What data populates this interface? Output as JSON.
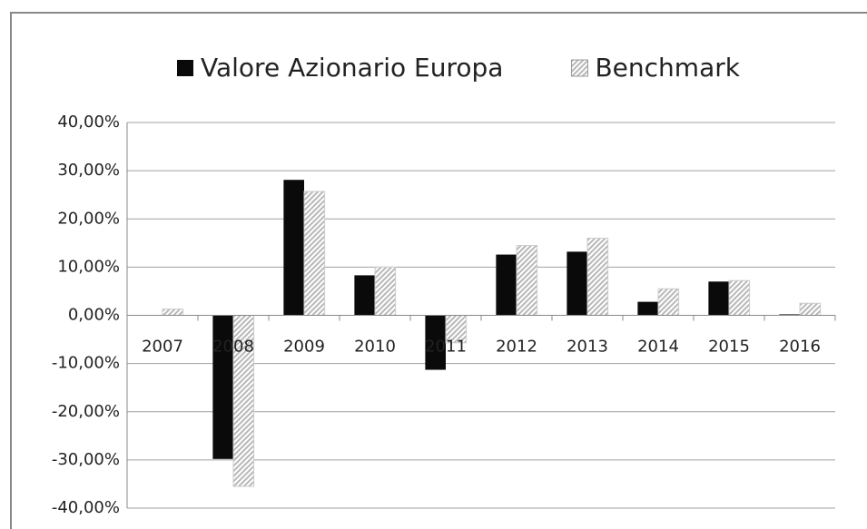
{
  "chart_data": {
    "type": "bar",
    "categories": [
      "2007",
      "2008",
      "2009",
      "2010",
      "2011",
      "2012",
      "2013",
      "2014",
      "2015",
      "2016"
    ],
    "series": [
      {
        "name": "Valore Azionario Europa",
        "color": "#0a0a0a",
        "values": [
          0,
          -29.8,
          28.1,
          8.3,
          -11.3,
          12.6,
          13.2,
          2.8,
          7.0,
          0.2
        ]
      },
      {
        "name": "Benchmark",
        "color": "#b8b8b8",
        "values": [
          1.3,
          -35.5,
          25.7,
          10.0,
          -5.7,
          14.5,
          16.0,
          5.5,
          7.2,
          2.5
        ]
      }
    ],
    "ylim": [
      -40,
      40
    ],
    "yticks": [
      {
        "value": -40,
        "label": "-40,00%"
      },
      {
        "value": -30,
        "label": "-30,00%"
      },
      {
        "value": -20,
        "label": "-20,00%"
      },
      {
        "value": -10,
        "label": "-10,00%"
      },
      {
        "value": 0,
        "label": "0,00%"
      },
      {
        "value": 10,
        "label": "10,00%"
      },
      {
        "value": 20,
        "label": "20,00%"
      },
      {
        "value": 30,
        "label": "30,00%"
      },
      {
        "value": 40,
        "label": "40,00%"
      }
    ],
    "grid": true,
    "legend": "top"
  }
}
